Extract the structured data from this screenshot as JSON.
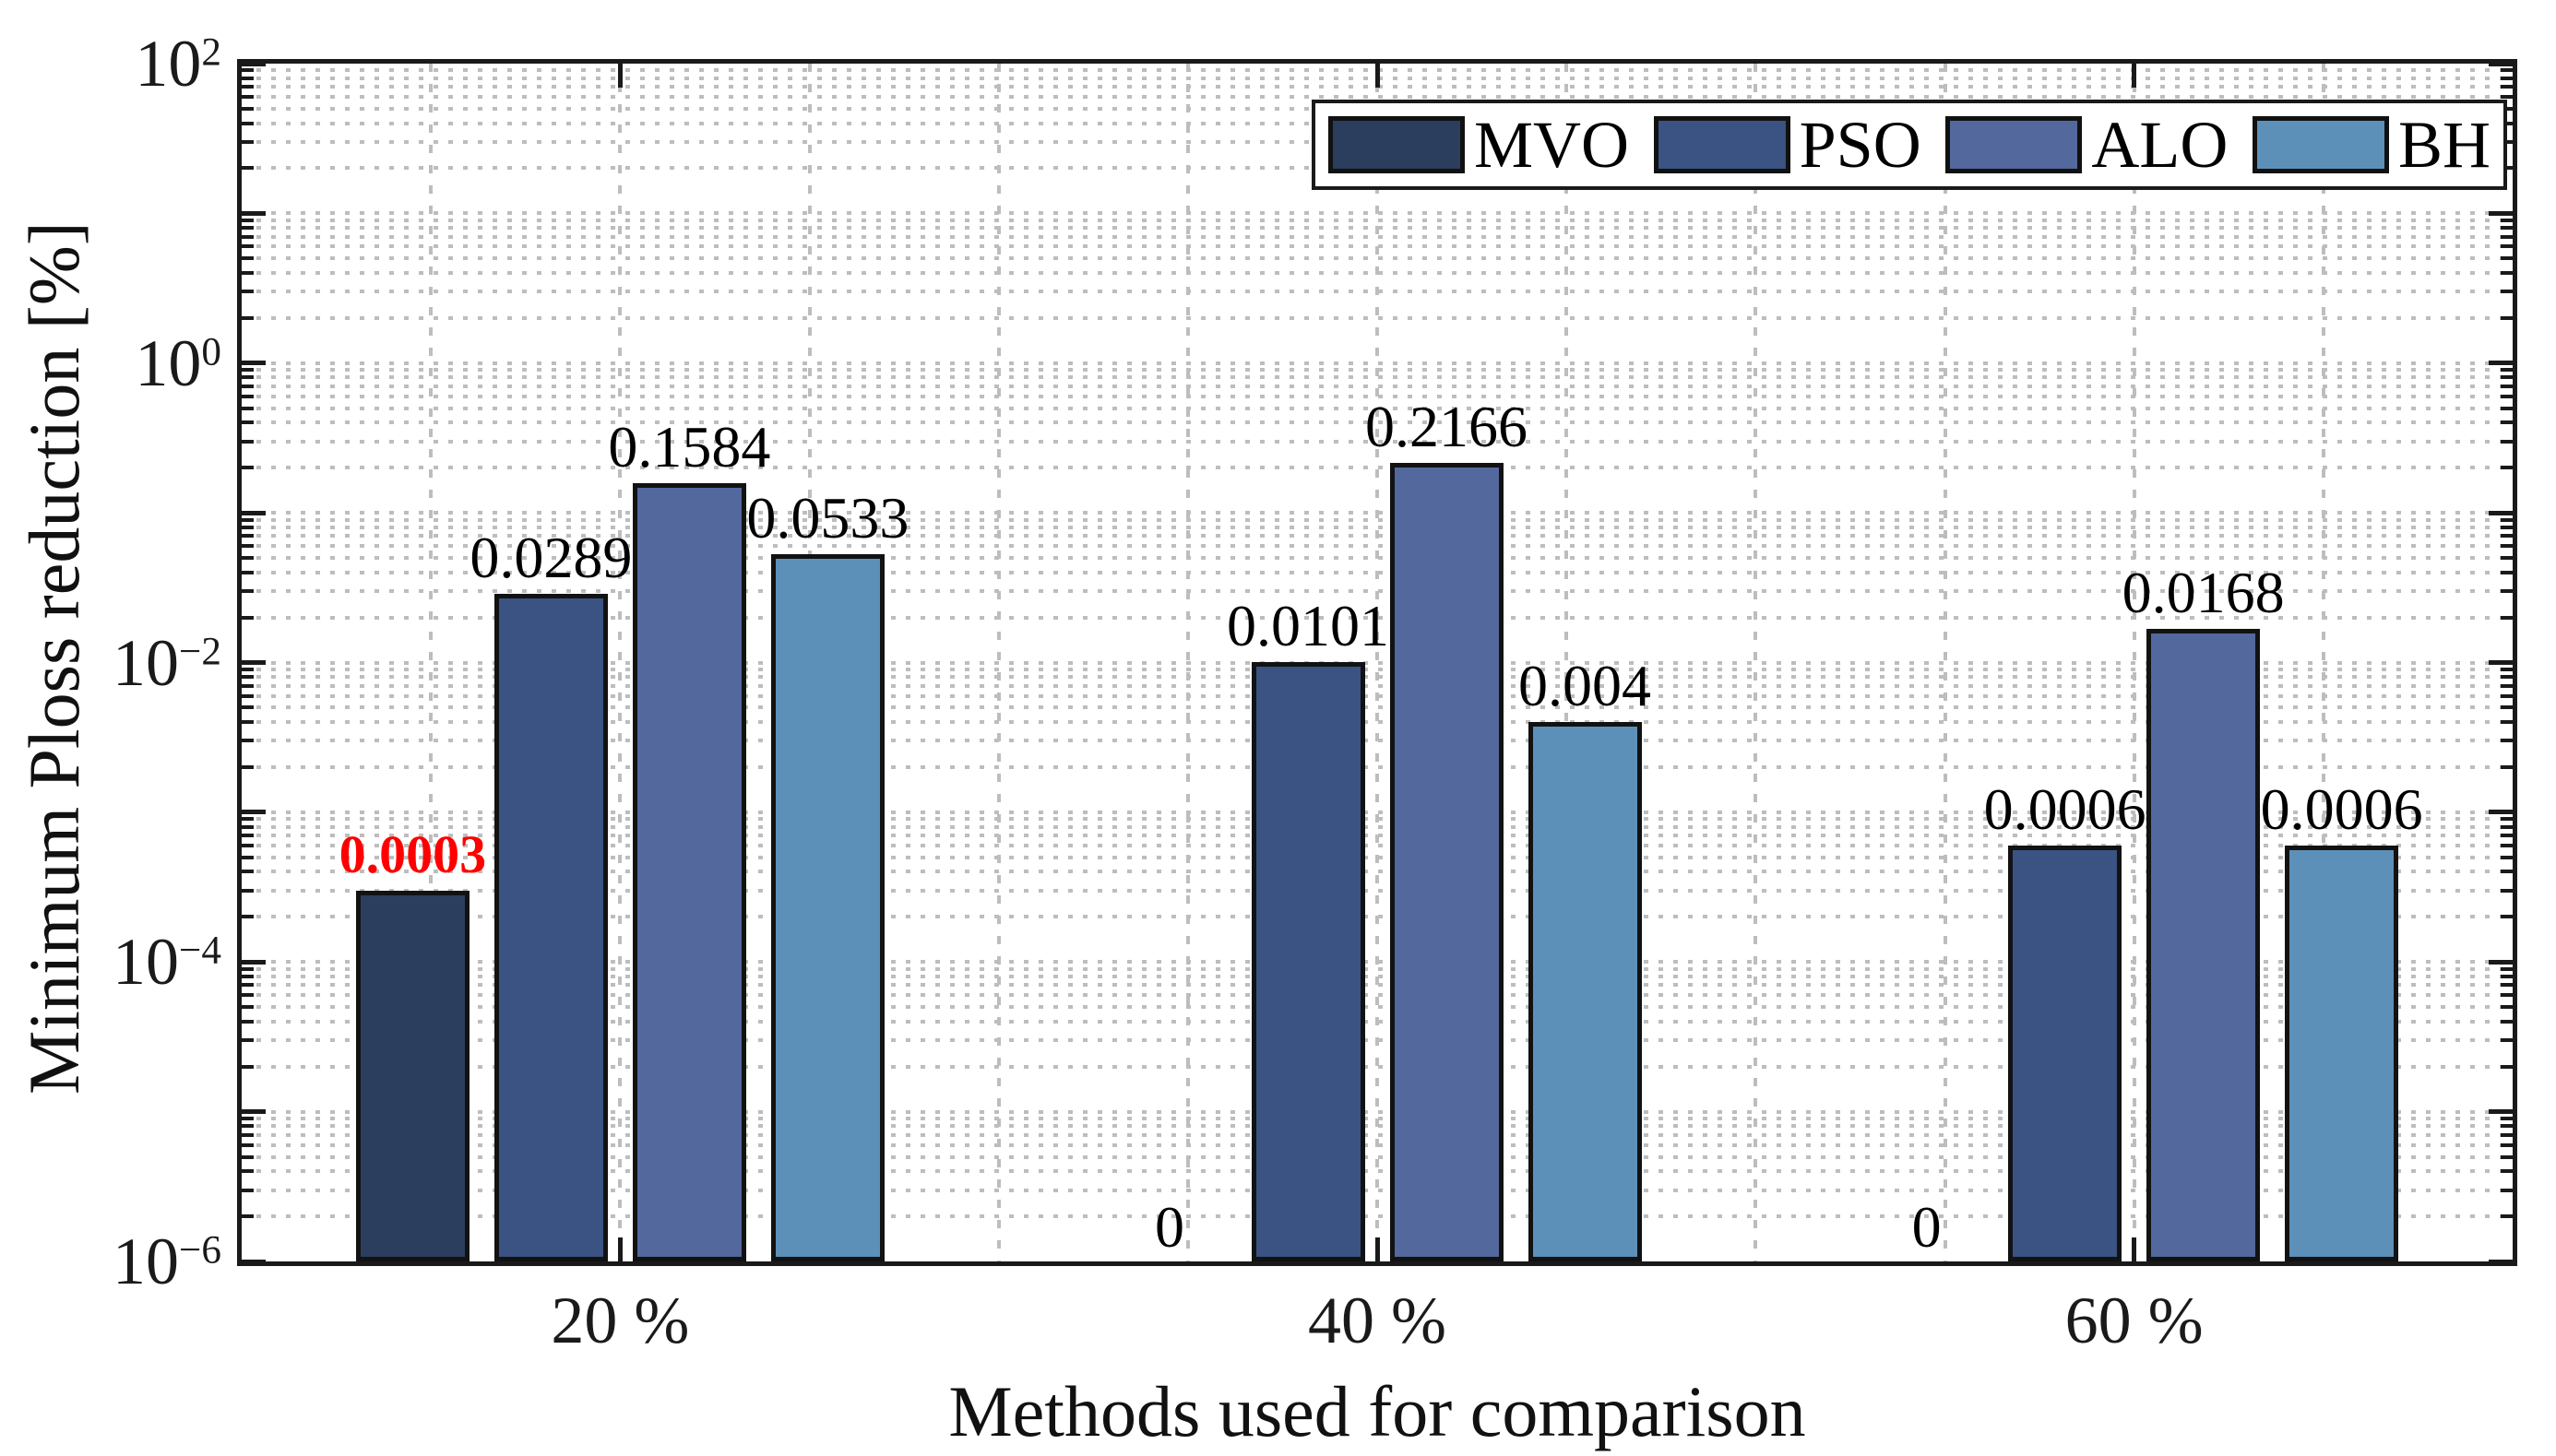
{
  "figure": {
    "background": "#ffffff",
    "axis_color": "#1a1a1a",
    "grid_color": "#bdbdbd",
    "highlight_color": "#ff0000"
  },
  "chart_data": {
    "type": "bar",
    "title": "",
    "xlabel": "Methods used for comparison",
    "ylabel": "Minimum Ploss reduction [%]",
    "yscale": "log",
    "ylim": [
      1e-06,
      100
    ],
    "y_tick_exponents": [
      2,
      0,
      -2,
      -4,
      -6
    ],
    "grid": "major-and-minor, dotted",
    "legend_position": "top-right-inside",
    "categories": [
      "20 %",
      "40 %",
      "60 %"
    ],
    "series": [
      {
        "name": "MVO",
        "color": "#2b3e5e",
        "values": [
          0.0003,
          0,
          0
        ]
      },
      {
        "name": "PSO",
        "color": "#3a5382",
        "values": [
          0.0289,
          0.0101,
          0.0006
        ]
      },
      {
        "name": "ALO",
        "color": "#53689c",
        "values": [
          0.1584,
          0.2166,
          0.0168
        ]
      },
      {
        "name": "BH",
        "color": "#5d90b9",
        "values": [
          0.0533,
          0.004,
          0.0006
        ]
      }
    ],
    "bar_value_labels": [
      [
        "0.0003",
        "0.0289",
        "0.1584",
        "0.0533"
      ],
      [
        "0",
        "0.0101",
        "0.2166",
        "0.004"
      ],
      [
        "0",
        "0.0006",
        "0.0168",
        "0.0006"
      ]
    ],
    "highlighted_label": {
      "category_index": 0,
      "series_index": 0,
      "text": "0.0003",
      "color": "#ff0000",
      "bold": true
    }
  }
}
